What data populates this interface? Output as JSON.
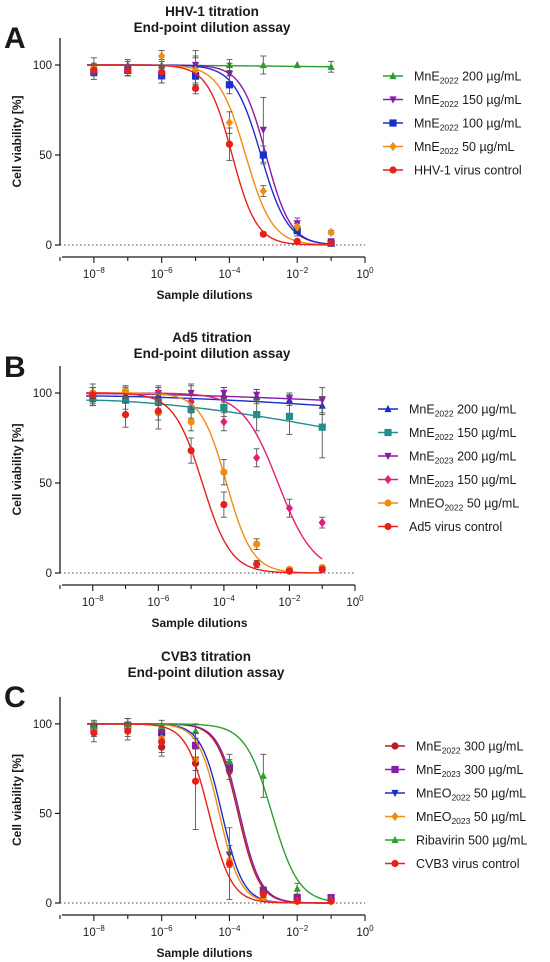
{
  "chart_data": [
    {
      "type": "line",
      "panel": "A",
      "title": [
        "HHV-1 titration",
        "End-point dilution assay"
      ],
      "xlabel": "Sample dilutions",
      "ylabel": "Cell viability [%]",
      "xscale": "log",
      "xlim": [
        1e-09,
        1
      ],
      "ylim": [
        0,
        115
      ],
      "yticks": [
        0,
        50,
        100
      ],
      "xticks": [
        "10^-8",
        "10^-6",
        "10^-4",
        "10^-2",
        "10^0"
      ],
      "reference_line": 0,
      "legend_position": "right",
      "x": [
        1e-08,
        1e-07,
        1e-06,
        1e-05,
        0.0001,
        0.001,
        0.01,
        0.1
      ],
      "series": [
        {
          "name": "MnE2022 200 µg/mL",
          "label_parts": [
            "MnE",
            "2022",
            " 200 µg/mL"
          ],
          "color": "#2e9e2e",
          "marker": "triangle-up",
          "values": [
            100,
            100,
            100,
            100,
            100,
            100,
            100,
            99
          ],
          "errors": [
            4,
            3,
            3,
            4,
            3,
            5,
            0,
            3
          ],
          "ec50": null
        },
        {
          "name": "MnE2022 150 µg/mL",
          "label_parts": [
            "MnE",
            "2022",
            " 150 µg/mL"
          ],
          "color": "#8b1aa8",
          "marker": "triangle-down",
          "values": [
            97,
            98,
            95,
            100,
            95,
            64,
            12,
            2
          ],
          "errors": [
            3,
            4,
            5,
            8,
            6,
            18,
            3,
            1
          ],
          "ec50": 0.0012,
          "hill": 1.2
        },
        {
          "name": "MnE2022 100 µg/mL",
          "label_parts": [
            "MnE",
            "2022",
            " 100 µg/mL"
          ],
          "color": "#1a2ec8",
          "marker": "square",
          "values": [
            96,
            97,
            94,
            94,
            89,
            50,
            8,
            1
          ],
          "errors": [
            4,
            3,
            4,
            5,
            5,
            5,
            3,
            1
          ],
          "ec50": 0.00085,
          "hill": 1.1
        },
        {
          "name": "MnE2022 50 µg/mL",
          "label_parts": [
            "MnE",
            "2022",
            " 50 µg/mL"
          ],
          "color": "#f08c10",
          "marker": "diamond",
          "values": [
            98,
            97,
            105,
            97,
            68,
            30,
            10,
            7
          ],
          "errors": [
            3,
            3,
            3,
            8,
            6,
            3,
            2,
            1
          ],
          "ec50": 0.0003,
          "hill": 1.1
        },
        {
          "name": "HHV-1 virus control",
          "label_parts": [
            "HHV-1 virus control",
            "",
            ""
          ],
          "color": "#e8201a",
          "marker": "circle",
          "values": [
            97,
            97,
            96,
            87,
            56,
            6,
            2,
            1
          ],
          "errors": [
            3,
            3,
            3,
            3,
            9,
            1,
            1,
            0
          ],
          "ec50": 0.00012,
          "hill": 1.2
        }
      ]
    },
    {
      "type": "line",
      "panel": "B",
      "title": [
        "Ad5 titration",
        "End-point dilution assay"
      ],
      "xlabel": "Sample dilutions",
      "ylabel": "Cell viability [%]",
      "xscale": "log",
      "xlim": [
        1e-09,
        1
      ],
      "ylim": [
        0,
        115
      ],
      "yticks": [
        0,
        50,
        100
      ],
      "xticks": [
        "10^-8",
        "10^-6",
        "10^-4",
        "10^-2",
        "10^0"
      ],
      "reference_line": 0,
      "legend_position": "right",
      "x": [
        1e-08,
        1e-07,
        1e-06,
        1e-05,
        0.0001,
        0.001,
        0.01,
        0.1
      ],
      "series": [
        {
          "name": "MnE2022 200 µg/mL",
          "label_parts": [
            "MnE",
            "2022",
            " 200 µg/mL"
          ],
          "color": "#1a2ec8",
          "marker": "triangle-up",
          "values": [
            97,
            99,
            99,
            100,
            99,
            98,
            96,
            93
          ],
          "errors": [
            3,
            3,
            4,
            5,
            4,
            4,
            3,
            5
          ],
          "ec50": null
        },
        {
          "name": "MnE2022 150 µg/mL",
          "label_parts": [
            "MnE",
            "2022",
            " 150 µg/mL"
          ],
          "color": "#1f8f8f",
          "marker": "square",
          "values": [
            97,
            96,
            95,
            91,
            92,
            88,
            87,
            81
          ],
          "errors": [
            4,
            5,
            6,
            5,
            5,
            9,
            10,
            17
          ],
          "ec50": null
        },
        {
          "name": "MnE2023 200 µg/mL",
          "label_parts": [
            "MnE",
            "2023",
            " 200 µg/mL"
          ],
          "color": "#8b1aa8",
          "marker": "triangle-down",
          "values": [
            99,
            100,
            100,
            100,
            100,
            99,
            97,
            96
          ],
          "errors": [
            4,
            3,
            3,
            4,
            3,
            3,
            3,
            7
          ],
          "ec50": null
        },
        {
          "name": "MnE2023 150 µg/mL",
          "label_parts": [
            "MnE",
            "2023",
            " 150 µg/mL"
          ],
          "color": "#e0207a",
          "marker": "diamond",
          "values": [
            100,
            101,
            100,
            95,
            84,
            64,
            36,
            28
          ],
          "errors": [
            3,
            3,
            4,
            4,
            5,
            5,
            5,
            3
          ],
          "ec50": 0.0045,
          "hill": 0.8
        },
        {
          "name": "MnEO2022 50 µg/mL",
          "label_parts": [
            "MnEO",
            "2022",
            " 50 µg/mL"
          ],
          "color": "#f08c10",
          "marker": "circle",
          "values": [
            100,
            101,
            89,
            84,
            56,
            16,
            2,
            3
          ],
          "errors": [
            3,
            3,
            4,
            5,
            7,
            3,
            1,
            1
          ],
          "ec50": 0.00012,
          "hill": 1.1
        },
        {
          "name": "Ad5 virus control",
          "label_parts": [
            "Ad5 virus control",
            "",
            ""
          ],
          "color": "#e8201a",
          "marker": "circle",
          "values": [
            99,
            88,
            90,
            68,
            38,
            5,
            1,
            2
          ],
          "errors": [
            6,
            7,
            10,
            7,
            7,
            2,
            1,
            1
          ],
          "ec50": 2.2e-05,
          "hill": 1.0
        }
      ]
    },
    {
      "type": "line",
      "panel": "C",
      "title": [
        "CVB3 titration",
        "End-point dilution assay"
      ],
      "xlabel": "Sample dilutions",
      "ylabel": "Cell viability [%]",
      "xscale": "log",
      "xlim": [
        1e-09,
        1
      ],
      "ylim": [
        0,
        115
      ],
      "yticks": [
        0,
        50,
        100
      ],
      "xticks": [
        "10^-8",
        "10^-6",
        "10^-4",
        "10^-2",
        "10^0"
      ],
      "reference_line": 0,
      "legend_position": "right",
      "x": [
        1e-08,
        1e-07,
        1e-06,
        1e-05,
        0.0001,
        0.001,
        0.01,
        0.1
      ],
      "series": [
        {
          "name": "MnE2022 300 µg/mL",
          "label_parts": [
            "MnE",
            "2022",
            " 300 µg/mL"
          ],
          "color": "#b81c1c",
          "marker": "circle",
          "values": [
            97,
            98,
            87,
            78,
            74,
            6,
            2,
            1
          ],
          "errors": [
            4,
            5,
            5,
            10,
            5,
            2,
            1,
            1
          ],
          "ec50": 0.00018,
          "hill": 1.4
        },
        {
          "name": "MnE2023 300 µg/mL",
          "label_parts": [
            "MnE",
            "2023",
            " 300 µg/mL"
          ],
          "color": "#8b1aa8",
          "marker": "square",
          "values": [
            98,
            99,
            95,
            88,
            76,
            7,
            3,
            3
          ],
          "errors": [
            3,
            4,
            4,
            7,
            4,
            2,
            1,
            1
          ],
          "ec50": 0.0002,
          "hill": 1.4
        },
        {
          "name": "MnEO2022 50 µg/mL",
          "label_parts": [
            "MnEO",
            "2022",
            " 50 µg/mL"
          ],
          "color": "#1a2ec8",
          "marker": "triangle-down",
          "values": [
            98,
            98,
            93,
            80,
            27,
            4,
            1,
            1
          ],
          "errors": [
            3,
            3,
            4,
            6,
            5,
            1,
            1,
            0
          ],
          "ec50": 6e-05,
          "hill": 1.4
        },
        {
          "name": "MnEO2023 50 µg/mL",
          "label_parts": [
            "MnEO",
            "2023",
            " 50 µg/mL"
          ],
          "color": "#f08c10",
          "marker": "diamond",
          "values": [
            97,
            98,
            92,
            80,
            24,
            3,
            1,
            1
          ],
          "errors": [
            3,
            3,
            4,
            6,
            4,
            1,
            1,
            0
          ],
          "ec50": 5e-05,
          "hill": 1.4
        },
        {
          "name": "Ribavirin 500 µg/mL",
          "label_parts": [
            "Ribavirin 500 µg/mL",
            "",
            ""
          ],
          "color": "#2e9e2e",
          "marker": "triangle-up",
          "values": [
            99,
            100,
            99,
            96,
            79,
            71,
            8,
            2
          ],
          "errors": [
            3,
            3,
            3,
            4,
            4,
            12,
            3,
            1
          ],
          "ec50": 0.0018,
          "hill": 1.1
        },
        {
          "name": "CVB3 virus control",
          "label_parts": [
            "CVB3 virus control",
            "",
            ""
          ],
          "color": "#e8201a",
          "marker": "circle",
          "values": [
            95,
            96,
            90,
            68,
            22,
            5,
            1,
            1
          ],
          "errors": [
            5,
            5,
            6,
            27,
            20,
            2,
            1,
            0
          ],
          "ec50": 2.5e-05,
          "hill": 1.3
        }
      ]
    }
  ]
}
